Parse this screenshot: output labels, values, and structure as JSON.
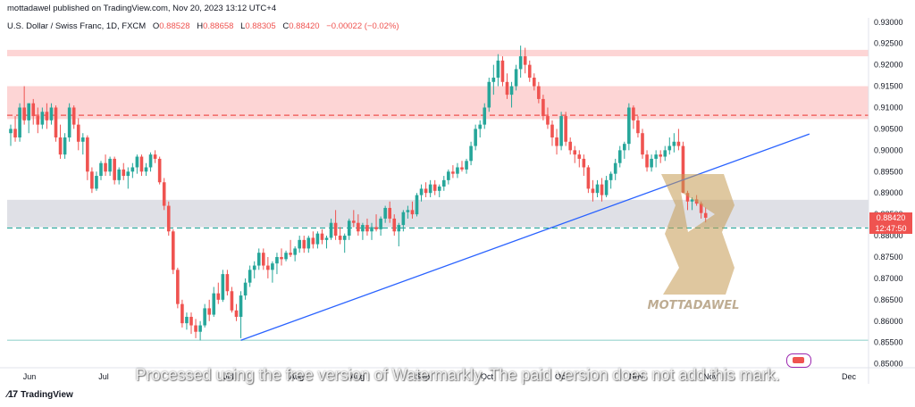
{
  "header": {
    "publisher": "mottadawel published on TradingView.com, Nov 20, 2023 13:12 UTC+4"
  },
  "legend": {
    "symbol": "U.S. Dollar / Swiss Franc, 1D, FXCM",
    "open_label": "O",
    "open": "0.88528",
    "high_label": "H",
    "high": "0.88658",
    "low_label": "L",
    "low": "0.88305",
    "close_label": "C",
    "close": "0.88420",
    "change": "−0.00022 (−0.02%)"
  },
  "price_tag": {
    "price": "0.88420",
    "countdown": "12:47:50"
  },
  "watermark_text": "Processed using the free version of Watermarkly. The paid version does not add this mark.",
  "logo_text": "MOTTADAWEL",
  "footer": {
    "brand": "TradingView"
  },
  "colors": {
    "up": "#26a69a",
    "down": "#ef5350",
    "trendline": "#2962ff",
    "resistance_zone": "#fdd0d0",
    "support_zone": "#dcdde3",
    "resistance_dash": "#ef5350",
    "support_dash": "#26a69a",
    "support_line": "#b2dfdb"
  },
  "chart_data": {
    "type": "candlestick",
    "yticks": [
      "0.93000",
      "0.92500",
      "0.92000",
      "0.91500",
      "0.91000",
      "0.90500",
      "0.90000",
      "0.89500",
      "0.89000",
      "0.88500",
      "0.88000",
      "0.87500",
      "0.87000",
      "0.86500",
      "0.86000",
      "0.85500",
      "0.85000"
    ],
    "ylim": [
      0.8495,
      0.931
    ],
    "xticks": [
      "Jun",
      "Jul",
      "Jul",
      "Aug",
      "Aug",
      "Sep",
      "Oct",
      "Oct",
      "Nov",
      "Nov",
      "Dec"
    ],
    "candle_count": 170,
    "zones": [
      {
        "kind": "resistance",
        "from": 0.922,
        "to": 0.9235
      },
      {
        "kind": "resistance",
        "from": 0.9073,
        "to": 0.915
      },
      {
        "kind": "support",
        "from": 0.882,
        "to": 0.8884
      }
    ],
    "levels": [
      {
        "kind": "resistance-dash",
        "price": 0.9082
      },
      {
        "kind": "support-dash",
        "price": 0.8818
      },
      {
        "kind": "support-line",
        "price": 0.8555
      }
    ],
    "trendline": {
      "from_index": 51,
      "from_price": 0.8555,
      "to_index": 177,
      "to_price": 0.9038
    },
    "series": [
      {
        "o": 0.904,
        "h": 0.906,
        "l": 0.901,
        "c": 0.905
      },
      {
        "o": 0.905,
        "h": 0.908,
        "l": 0.902,
        "c": 0.903
      },
      {
        "o": 0.903,
        "h": 0.911,
        "l": 0.902,
        "c": 0.91
      },
      {
        "o": 0.91,
        "h": 0.915,
        "l": 0.906,
        "c": 0.907
      },
      {
        "o": 0.907,
        "h": 0.911,
        "l": 0.904,
        "c": 0.911
      },
      {
        "o": 0.911,
        "h": 0.912,
        "l": 0.906,
        "c": 0.908
      },
      {
        "o": 0.908,
        "h": 0.91,
        "l": 0.904,
        "c": 0.906
      },
      {
        "o": 0.906,
        "h": 0.91,
        "l": 0.905,
        "c": 0.909
      },
      {
        "o": 0.909,
        "h": 0.911,
        "l": 0.905,
        "c": 0.907
      },
      {
        "o": 0.907,
        "h": 0.911,
        "l": 0.906,
        "c": 0.91
      },
      {
        "o": 0.91,
        "h": 0.9105,
        "l": 0.902,
        "c": 0.903
      },
      {
        "o": 0.903,
        "h": 0.906,
        "l": 0.898,
        "c": 0.899
      },
      {
        "o": 0.899,
        "h": 0.904,
        "l": 0.898,
        "c": 0.903
      },
      {
        "o": 0.903,
        "h": 0.911,
        "l": 0.902,
        "c": 0.91
      },
      {
        "o": 0.91,
        "h": 0.9105,
        "l": 0.905,
        "c": 0.906
      },
      {
        "o": 0.906,
        "h": 0.9075,
        "l": 0.9,
        "c": 0.902
      },
      {
        "o": 0.902,
        "h": 0.904,
        "l": 0.899,
        "c": 0.903
      },
      {
        "o": 0.903,
        "h": 0.9035,
        "l": 0.893,
        "c": 0.895
      },
      {
        "o": 0.895,
        "h": 0.896,
        "l": 0.89,
        "c": 0.891
      },
      {
        "o": 0.891,
        "h": 0.895,
        "l": 0.8905,
        "c": 0.894
      },
      {
        "o": 0.894,
        "h": 0.8975,
        "l": 0.893,
        "c": 0.897
      },
      {
        "o": 0.897,
        "h": 0.899,
        "l": 0.894,
        "c": 0.895
      },
      {
        "o": 0.895,
        "h": 0.8985,
        "l": 0.894,
        "c": 0.898
      },
      {
        "o": 0.898,
        "h": 0.8985,
        "l": 0.892,
        "c": 0.893
      },
      {
        "o": 0.893,
        "h": 0.896,
        "l": 0.892,
        "c": 0.8955
      },
      {
        "o": 0.8955,
        "h": 0.897,
        "l": 0.893,
        "c": 0.894
      },
      {
        "o": 0.894,
        "h": 0.896,
        "l": 0.891,
        "c": 0.895
      },
      {
        "o": 0.895,
        "h": 0.897,
        "l": 0.8935,
        "c": 0.896
      },
      {
        "o": 0.896,
        "h": 0.899,
        "l": 0.8945,
        "c": 0.8985
      },
      {
        "o": 0.8985,
        "h": 0.899,
        "l": 0.894,
        "c": 0.895
      },
      {
        "o": 0.895,
        "h": 0.897,
        "l": 0.894,
        "c": 0.896
      },
      {
        "o": 0.896,
        "h": 0.8995,
        "l": 0.895,
        "c": 0.899
      },
      {
        "o": 0.899,
        "h": 0.9,
        "l": 0.897,
        "c": 0.898
      },
      {
        "o": 0.898,
        "h": 0.8985,
        "l": 0.892,
        "c": 0.8925
      },
      {
        "o": 0.8925,
        "h": 0.8935,
        "l": 0.886,
        "c": 0.887
      },
      {
        "o": 0.887,
        "h": 0.888,
        "l": 0.88,
        "c": 0.881
      },
      {
        "o": 0.881,
        "h": 0.8815,
        "l": 0.871,
        "c": 0.872
      },
      {
        "o": 0.872,
        "h": 0.8725,
        "l": 0.863,
        "c": 0.864
      },
      {
        "o": 0.864,
        "h": 0.865,
        "l": 0.8585,
        "c": 0.8595
      },
      {
        "o": 0.8595,
        "h": 0.862,
        "l": 0.858,
        "c": 0.861
      },
      {
        "o": 0.861,
        "h": 0.862,
        "l": 0.857,
        "c": 0.859
      },
      {
        "o": 0.859,
        "h": 0.8605,
        "l": 0.856,
        "c": 0.8575
      },
      {
        "o": 0.8575,
        "h": 0.86,
        "l": 0.8555,
        "c": 0.859
      },
      {
        "o": 0.859,
        "h": 0.864,
        "l": 0.8585,
        "c": 0.863
      },
      {
        "o": 0.863,
        "h": 0.865,
        "l": 0.86,
        "c": 0.8615
      },
      {
        "o": 0.8615,
        "h": 0.868,
        "l": 0.861,
        "c": 0.8665
      },
      {
        "o": 0.8665,
        "h": 0.869,
        "l": 0.864,
        "c": 0.865
      },
      {
        "o": 0.865,
        "h": 0.872,
        "l": 0.8645,
        "c": 0.871
      },
      {
        "o": 0.871,
        "h": 0.872,
        "l": 0.866,
        "c": 0.867
      },
      {
        "o": 0.867,
        "h": 0.868,
        "l": 0.862,
        "c": 0.8625
      },
      {
        "o": 0.8625,
        "h": 0.864,
        "l": 0.86,
        "c": 0.861
      },
      {
        "o": 0.861,
        "h": 0.867,
        "l": 0.856,
        "c": 0.866
      },
      {
        "o": 0.866,
        "h": 0.87,
        "l": 0.865,
        "c": 0.869
      },
      {
        "o": 0.869,
        "h": 0.873,
        "l": 0.868,
        "c": 0.872
      },
      {
        "o": 0.872,
        "h": 0.874,
        "l": 0.87,
        "c": 0.873
      },
      {
        "o": 0.873,
        "h": 0.877,
        "l": 0.872,
        "c": 0.876
      },
      {
        "o": 0.876,
        "h": 0.877,
        "l": 0.872,
        "c": 0.873
      },
      {
        "o": 0.873,
        "h": 0.875,
        "l": 0.87,
        "c": 0.872
      },
      {
        "o": 0.872,
        "h": 0.874,
        "l": 0.869,
        "c": 0.8735
      },
      {
        "o": 0.8735,
        "h": 0.876,
        "l": 0.871,
        "c": 0.875
      },
      {
        "o": 0.875,
        "h": 0.877,
        "l": 0.873,
        "c": 0.8745
      },
      {
        "o": 0.8745,
        "h": 0.8765,
        "l": 0.874,
        "c": 0.876
      },
      {
        "o": 0.876,
        "h": 0.879,
        "l": 0.875,
        "c": 0.8755
      },
      {
        "o": 0.8755,
        "h": 0.8775,
        "l": 0.874,
        "c": 0.877
      },
      {
        "o": 0.877,
        "h": 0.88,
        "l": 0.876,
        "c": 0.879
      },
      {
        "o": 0.879,
        "h": 0.88,
        "l": 0.876,
        "c": 0.877
      },
      {
        "o": 0.877,
        "h": 0.88,
        "l": 0.876,
        "c": 0.8795
      },
      {
        "o": 0.8795,
        "h": 0.881,
        "l": 0.877,
        "c": 0.878
      },
      {
        "o": 0.878,
        "h": 0.881,
        "l": 0.877,
        "c": 0.8805
      },
      {
        "o": 0.8805,
        "h": 0.8815,
        "l": 0.878,
        "c": 0.879
      },
      {
        "o": 0.879,
        "h": 0.88,
        "l": 0.877,
        "c": 0.8795
      },
      {
        "o": 0.8795,
        "h": 0.884,
        "l": 0.879,
        "c": 0.883
      },
      {
        "o": 0.883,
        "h": 0.886,
        "l": 0.879,
        "c": 0.88
      },
      {
        "o": 0.88,
        "h": 0.882,
        "l": 0.878,
        "c": 0.879
      },
      {
        "o": 0.879,
        "h": 0.8805,
        "l": 0.876,
        "c": 0.88
      },
      {
        "o": 0.88,
        "h": 0.884,
        "l": 0.879,
        "c": 0.8835
      },
      {
        "o": 0.8835,
        "h": 0.886,
        "l": 0.882,
        "c": 0.883
      },
      {
        "o": 0.883,
        "h": 0.885,
        "l": 0.88,
        "c": 0.881
      },
      {
        "o": 0.881,
        "h": 0.883,
        "l": 0.879,
        "c": 0.8825
      },
      {
        "o": 0.8825,
        "h": 0.884,
        "l": 0.88,
        "c": 0.881
      },
      {
        "o": 0.881,
        "h": 0.883,
        "l": 0.879,
        "c": 0.882
      },
      {
        "o": 0.882,
        "h": 0.885,
        "l": 0.881,
        "c": 0.8815
      },
      {
        "o": 0.8815,
        "h": 0.8845,
        "l": 0.88,
        "c": 0.884
      },
      {
        "o": 0.884,
        "h": 0.887,
        "l": 0.883,
        "c": 0.8865
      },
      {
        "o": 0.8865,
        "h": 0.888,
        "l": 0.883,
        "c": 0.884
      },
      {
        "o": 0.884,
        "h": 0.885,
        "l": 0.88,
        "c": 0.881
      },
      {
        "o": 0.881,
        "h": 0.883,
        "l": 0.8775,
        "c": 0.8825
      },
      {
        "o": 0.8825,
        "h": 0.886,
        "l": 0.881,
        "c": 0.8855
      },
      {
        "o": 0.8855,
        "h": 0.887,
        "l": 0.884,
        "c": 0.886
      },
      {
        "o": 0.886,
        "h": 0.888,
        "l": 0.884,
        "c": 0.885
      },
      {
        "o": 0.885,
        "h": 0.89,
        "l": 0.8845,
        "c": 0.8895
      },
      {
        "o": 0.8895,
        "h": 0.892,
        "l": 0.888,
        "c": 0.891
      },
      {
        "o": 0.891,
        "h": 0.8925,
        "l": 0.889,
        "c": 0.89
      },
      {
        "o": 0.89,
        "h": 0.893,
        "l": 0.889,
        "c": 0.892
      },
      {
        "o": 0.892,
        "h": 0.893,
        "l": 0.8895,
        "c": 0.8905
      },
      {
        "o": 0.8905,
        "h": 0.892,
        "l": 0.889,
        "c": 0.8915
      },
      {
        "o": 0.8915,
        "h": 0.894,
        "l": 0.8905,
        "c": 0.893
      },
      {
        "o": 0.893,
        "h": 0.8955,
        "l": 0.892,
        "c": 0.895
      },
      {
        "o": 0.895,
        "h": 0.8965,
        "l": 0.8935,
        "c": 0.8945
      },
      {
        "o": 0.8945,
        "h": 0.897,
        "l": 0.8935,
        "c": 0.896
      },
      {
        "o": 0.896,
        "h": 0.8975,
        "l": 0.895,
        "c": 0.8955
      },
      {
        "o": 0.8955,
        "h": 0.898,
        "l": 0.8945,
        "c": 0.8975
      },
      {
        "o": 0.8975,
        "h": 0.902,
        "l": 0.8965,
        "c": 0.901
      },
      {
        "o": 0.901,
        "h": 0.906,
        "l": 0.9,
        "c": 0.905
      },
      {
        "o": 0.905,
        "h": 0.907,
        "l": 0.903,
        "c": 0.906
      },
      {
        "o": 0.906,
        "h": 0.911,
        "l": 0.905,
        "c": 0.91
      },
      {
        "o": 0.91,
        "h": 0.917,
        "l": 0.909,
        "c": 0.916
      },
      {
        "o": 0.916,
        "h": 0.92,
        "l": 0.913,
        "c": 0.917
      },
      {
        "o": 0.917,
        "h": 0.9225,
        "l": 0.915,
        "c": 0.921
      },
      {
        "o": 0.921,
        "h": 0.922,
        "l": 0.915,
        "c": 0.916
      },
      {
        "o": 0.916,
        "h": 0.918,
        "l": 0.912,
        "c": 0.913
      },
      {
        "o": 0.913,
        "h": 0.916,
        "l": 0.91,
        "c": 0.915
      },
      {
        "o": 0.915,
        "h": 0.92,
        "l": 0.914,
        "c": 0.919
      },
      {
        "o": 0.919,
        "h": 0.9245,
        "l": 0.917,
        "c": 0.922
      },
      {
        "o": 0.922,
        "h": 0.924,
        "l": 0.918,
        "c": 0.92
      },
      {
        "o": 0.92,
        "h": 0.921,
        "l": 0.916,
        "c": 0.917
      },
      {
        "o": 0.917,
        "h": 0.918,
        "l": 0.914,
        "c": 0.915
      },
      {
        "o": 0.915,
        "h": 0.916,
        "l": 0.911,
        "c": 0.912
      },
      {
        "o": 0.912,
        "h": 0.913,
        "l": 0.907,
        "c": 0.908
      },
      {
        "o": 0.908,
        "h": 0.91,
        "l": 0.905,
        "c": 0.906
      },
      {
        "o": 0.906,
        "h": 0.907,
        "l": 0.901,
        "c": 0.903
      },
      {
        "o": 0.903,
        "h": 0.905,
        "l": 0.899,
        "c": 0.901
      },
      {
        "o": 0.901,
        "h": 0.909,
        "l": 0.9,
        "c": 0.908
      },
      {
        "o": 0.908,
        "h": 0.909,
        "l": 0.901,
        "c": 0.902
      },
      {
        "o": 0.902,
        "h": 0.903,
        "l": 0.899,
        "c": 0.9
      },
      {
        "o": 0.9,
        "h": 0.901,
        "l": 0.897,
        "c": 0.899
      },
      {
        "o": 0.899,
        "h": 0.9,
        "l": 0.896,
        "c": 0.898
      },
      {
        "o": 0.898,
        "h": 0.899,
        "l": 0.894,
        "c": 0.896
      },
      {
        "o": 0.896,
        "h": 0.8965,
        "l": 0.89,
        "c": 0.891
      },
      {
        "o": 0.891,
        "h": 0.893,
        "l": 0.888,
        "c": 0.89
      },
      {
        "o": 0.89,
        "h": 0.893,
        "l": 0.889,
        "c": 0.892
      },
      {
        "o": 0.892,
        "h": 0.8935,
        "l": 0.888,
        "c": 0.8895
      },
      {
        "o": 0.8895,
        "h": 0.894,
        "l": 0.889,
        "c": 0.893
      },
      {
        "o": 0.893,
        "h": 0.895,
        "l": 0.891,
        "c": 0.8945
      },
      {
        "o": 0.8945,
        "h": 0.898,
        "l": 0.893,
        "c": 0.897
      },
      {
        "o": 0.897,
        "h": 0.901,
        "l": 0.896,
        "c": 0.9
      },
      {
        "o": 0.9,
        "h": 0.902,
        "l": 0.898,
        "c": 0.9015
      },
      {
        "o": 0.9015,
        "h": 0.911,
        "l": 0.9,
        "c": 0.91
      },
      {
        "o": 0.91,
        "h": 0.9105,
        "l": 0.905,
        "c": 0.907
      },
      {
        "o": 0.907,
        "h": 0.908,
        "l": 0.903,
        "c": 0.904
      },
      {
        "o": 0.904,
        "h": 0.905,
        "l": 0.898,
        "c": 0.899
      },
      {
        "o": 0.899,
        "h": 0.9,
        "l": 0.895,
        "c": 0.896
      },
      {
        "o": 0.896,
        "h": 0.899,
        "l": 0.895,
        "c": 0.898
      },
      {
        "o": 0.898,
        "h": 0.9,
        "l": 0.896,
        "c": 0.899
      },
      {
        "o": 0.899,
        "h": 0.9,
        "l": 0.897,
        "c": 0.8985
      },
      {
        "o": 0.8985,
        "h": 0.901,
        "l": 0.8975,
        "c": 0.9
      },
      {
        "o": 0.9,
        "h": 0.903,
        "l": 0.899,
        "c": 0.901
      },
      {
        "o": 0.901,
        "h": 0.904,
        "l": 0.8995,
        "c": 0.902
      },
      {
        "o": 0.902,
        "h": 0.905,
        "l": 0.9,
        "c": 0.901
      },
      {
        "o": 0.901,
        "h": 0.902,
        "l": 0.89,
        "c": 0.89
      },
      {
        "o": 0.89,
        "h": 0.8905,
        "l": 0.886,
        "c": 0.888
      },
      {
        "o": 0.888,
        "h": 0.889,
        "l": 0.886,
        "c": 0.8885
      },
      {
        "o": 0.8885,
        "h": 0.8895,
        "l": 0.887,
        "c": 0.8875
      },
      {
        "o": 0.8875,
        "h": 0.888,
        "l": 0.884,
        "c": 0.8853
      },
      {
        "o": 0.8853,
        "h": 0.8866,
        "l": 0.8831,
        "c": 0.8842
      }
    ]
  }
}
